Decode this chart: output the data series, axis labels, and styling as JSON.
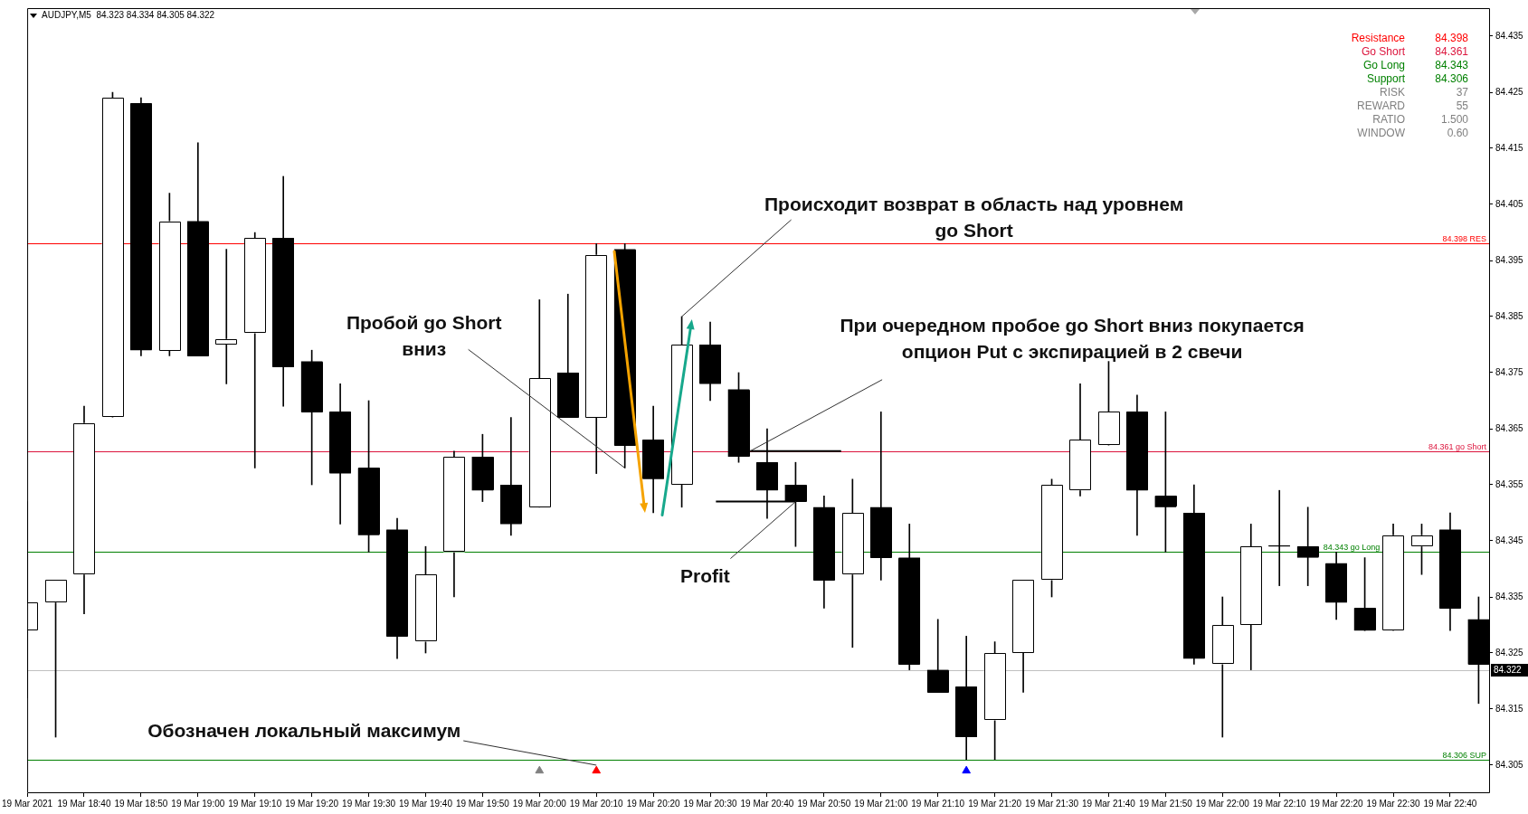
{
  "chart_data": {
    "type": "candlestick",
    "title": "AUDJPY,M5  84.323 84.334 84.305 84.322",
    "x": [
      "2021-03-19T18:30",
      "2021-03-19T18:35",
      "2021-03-19T18:40",
      "2021-03-19T18:45",
      "2021-03-19T18:50",
      "2021-03-19T18:55",
      "2021-03-19T19:00",
      "2021-03-19T19:05",
      "2021-03-19T19:10",
      "2021-03-19T19:15",
      "2021-03-19T19:20",
      "2021-03-19T19:25",
      "2021-03-19T19:30",
      "2021-03-19T19:35",
      "2021-03-19T19:40",
      "2021-03-19T19:45",
      "2021-03-19T19:50",
      "2021-03-19T19:55",
      "2021-03-19T20:00",
      "2021-03-19T20:05",
      "2021-03-19T20:10",
      "2021-03-19T20:15",
      "2021-03-19T20:20",
      "2021-03-19T20:25",
      "2021-03-19T20:30",
      "2021-03-19T20:35",
      "2021-03-19T20:40",
      "2021-03-19T20:45",
      "2021-03-19T20:50",
      "2021-03-19T20:55",
      "2021-03-19T21:00",
      "2021-03-19T21:05",
      "2021-03-19T21:10",
      "2021-03-19T21:15",
      "2021-03-19T21:20",
      "2021-03-19T21:25",
      "2021-03-19T21:30",
      "2021-03-19T21:35",
      "2021-03-19T21:40",
      "2021-03-19T21:45",
      "2021-03-19T21:50",
      "2021-03-19T21:55",
      "2021-03-19T22:00",
      "2021-03-19T22:05",
      "2021-03-19T22:10",
      "2021-03-19T22:15",
      "2021-03-19T22:20",
      "2021-03-19T22:25",
      "2021-03-19T22:30",
      "2021-03-19T22:35",
      "2021-03-19T22:40",
      "2021-03-19T22:45"
    ],
    "ohlc": [
      [
        84.329,
        84.352,
        84.317,
        84.334
      ],
      [
        84.334,
        84.338,
        84.31,
        84.338
      ],
      [
        84.339,
        84.369,
        84.332,
        84.366
      ],
      [
        84.367,
        84.425,
        84.367,
        84.424
      ],
      [
        84.423,
        84.424,
        84.378,
        84.379
      ],
      [
        84.379,
        84.407,
        84.378,
        84.402
      ],
      [
        84.402,
        84.416,
        84.378,
        84.378
      ],
      [
        84.38,
        84.397,
        84.373,
        84.381
      ],
      [
        84.382,
        84.4,
        84.358,
        84.399
      ],
      [
        84.399,
        84.41,
        84.369,
        84.376
      ],
      [
        84.377,
        84.379,
        84.355,
        84.368
      ],
      [
        84.368,
        84.373,
        84.348,
        84.357
      ],
      [
        84.358,
        84.37,
        84.343,
        84.346
      ],
      [
        84.347,
        84.349,
        84.324,
        84.328
      ],
      [
        84.327,
        84.344,
        84.325,
        84.339
      ],
      [
        84.343,
        84.361,
        84.335,
        84.36
      ],
      [
        84.36,
        84.364,
        84.352,
        84.354
      ],
      [
        84.355,
        84.367,
        84.346,
        84.348
      ],
      [
        84.351,
        84.388,
        84.351,
        84.374
      ],
      [
        84.375,
        84.389,
        84.367,
        84.367
      ],
      [
        84.367,
        84.398,
        84.357,
        84.396
      ],
      [
        84.397,
        84.398,
        84.358,
        84.362
      ],
      [
        84.363,
        84.369,
        84.35,
        84.356
      ],
      [
        84.355,
        84.385,
        84.351,
        84.38
      ],
      [
        84.38,
        84.384,
        84.37,
        84.373
      ],
      [
        84.372,
        84.375,
        84.359,
        84.36
      ],
      [
        84.359,
        84.365,
        84.349,
        84.354
      ],
      [
        84.355,
        84.359,
        84.344,
        84.352
      ],
      [
        84.351,
        84.353,
        84.333,
        84.338
      ],
      [
        84.339,
        84.356,
        84.326,
        84.35
      ],
      [
        84.351,
        84.368,
        84.338,
        84.342
      ],
      [
        84.342,
        84.348,
        84.322,
        84.323
      ],
      [
        84.322,
        84.331,
        84.318,
        84.318
      ],
      [
        84.319,
        84.328,
        84.306,
        84.31
      ],
      [
        84.313,
        84.327,
        84.306,
        84.325
      ],
      [
        84.325,
        84.338,
        84.318,
        84.338
      ],
      [
        84.338,
        84.356,
        84.335,
        84.355
      ],
      [
        84.354,
        84.373,
        84.353,
        84.363
      ],
      [
        84.362,
        84.377,
        84.362,
        84.368
      ],
      [
        84.368,
        84.371,
        84.346,
        84.354
      ],
      [
        84.353,
        84.368,
        84.343,
        84.351
      ],
      [
        84.35,
        84.355,
        84.323,
        84.324
      ],
      [
        84.323,
        84.335,
        84.31,
        84.33
      ],
      [
        84.33,
        84.348,
        84.322,
        84.344
      ],
      [
        84.344,
        84.354,
        84.337,
        84.344
      ],
      [
        84.344,
        84.351,
        84.337,
        84.342
      ],
      [
        84.341,
        84.343,
        84.331,
        84.334
      ],
      [
        84.333,
        84.342,
        84.329,
        84.329
      ],
      [
        84.329,
        84.348,
        84.329,
        84.346
      ],
      [
        84.344,
        84.348,
        84.339,
        84.346
      ],
      [
        84.347,
        84.35,
        84.329,
        84.333
      ],
      [
        84.331,
        84.335,
        84.316,
        84.323
      ]
    ],
    "color": "#000000",
    "colors": [
      "#ffffff",
      "#ffffff",
      "#ffffff",
      "#ffffff",
      "#000000",
      "#ffffff",
      "#000000",
      "#ffffff",
      "#ffffff",
      "#000000",
      "#000000",
      "#000000",
      "#000000",
      "#000000",
      "#ffffff",
      "#ffffff",
      "#000000",
      "#000000",
      "#ffffff",
      "#000000",
      "#ffffff",
      "#000000",
      "#000000",
      "#ffffff",
      "#000000",
      "#000000",
      "#000000",
      "#000000",
      "#000000",
      "#ffffff",
      "#000000",
      "#000000",
      "#000000",
      "#000000",
      "#ffffff",
      "#ffffff",
      "#ffffff",
      "#ffffff",
      "#ffffff",
      "#000000",
      "#000000",
      "#000000",
      "#ffffff",
      "#ffffff",
      "#000000",
      "#000000",
      "#000000",
      "#000000",
      "#ffffff",
      "#ffffff",
      "#000000",
      "#000000"
    ],
    "series": [
      {
        "type": "line",
        "x": [
          "2021-03-19T20:37",
          "2021-03-19T20:53"
        ],
        "values": [
          84.361,
          84.361
        ],
        "color": "#000000"
      },
      {
        "type": "line",
        "x": [
          "2021-03-19T20:31",
          "2021-03-19T20:45"
        ],
        "values": [
          84.352,
          84.352
        ],
        "color": "#000000"
      },
      {
        "type": "scatter",
        "x": [
          "2021-03-19T20:00",
          "2021-03-19T20:10",
          "2021-03-19T21:15"
        ],
        "values": [
          84.304,
          84.304,
          84.304
        ],
        "colors": [
          "#808080",
          "#ff0000",
          "#0000ff"
        ],
        "marker": "triangle"
      }
    ],
    "xlim": [
      "2021-03-19T18:30",
      "2021-03-19T22:47"
    ],
    "xticks": [
      {
        "value": "2021-03-19T18:30",
        "label": "19 Mar 2021"
      },
      {
        "value": "2021-03-19T18:40",
        "label": "19 Mar 18:40"
      },
      {
        "value": "2021-03-19T18:50",
        "label": "19 Mar 18:50"
      },
      {
        "value": "2021-03-19T19:00",
        "label": "19 Mar 19:00"
      },
      {
        "value": "2021-03-19T19:10",
        "label": "19 Mar 19:10"
      },
      {
        "value": "2021-03-19T19:20",
        "label": "19 Mar 19:20"
      },
      {
        "value": "2021-03-19T19:30",
        "label": "19 Mar 19:30"
      },
      {
        "value": "2021-03-19T19:40",
        "label": "19 Mar 19:40"
      },
      {
        "value": "2021-03-19T19:50",
        "label": "19 Mar 19:50"
      },
      {
        "value": "2021-03-19T20:00",
        "label": "19 Mar 20:00"
      },
      {
        "value": "2021-03-19T20:10",
        "label": "19 Mar 20:10"
      },
      {
        "value": "2021-03-19T20:20",
        "label": "19 Mar 20:20"
      },
      {
        "value": "2021-03-19T20:30",
        "label": "19 Mar 20:30"
      },
      {
        "value": "2021-03-19T20:40",
        "label": "19 Mar 20:40"
      },
      {
        "value": "2021-03-19T20:50",
        "label": "19 Mar 20:50"
      },
      {
        "value": "2021-03-19T21:00",
        "label": "19 Mar 21:00"
      },
      {
        "value": "2021-03-19T21:10",
        "label": "19 Mar 21:10"
      },
      {
        "value": "2021-03-19T21:20",
        "label": "19 Mar 21:20"
      },
      {
        "value": "2021-03-19T21:30",
        "label": "19 Mar 21:30"
      },
      {
        "value": "2021-03-19T21:40",
        "label": "19 Mar 21:40"
      },
      {
        "value": "2021-03-19T21:50",
        "label": "19 Mar 21:50"
      },
      {
        "value": "2021-03-19T22:00",
        "label": "19 Mar 22:00"
      },
      {
        "value": "2021-03-19T22:10",
        "label": "19 Mar 22:10"
      },
      {
        "value": "2021-03-19T22:20",
        "label": "19 Mar 22:20"
      },
      {
        "value": "2021-03-19T22:30",
        "label": "19 Mar 22:30"
      },
      {
        "value": "2021-03-19T22:40",
        "label": "19 Mar 22:40"
      }
    ],
    "ylim": [
      84.3,
      84.44
    ],
    "yticks": [
      84.305,
      84.315,
      84.325,
      84.335,
      84.345,
      84.355,
      84.365,
      84.375,
      84.385,
      84.395,
      84.405,
      84.415,
      84.425,
      84.435
    ],
    "ref_lines": [
      {
        "axis": "y",
        "value": 84.398,
        "label": "84.398 RES",
        "color": "#ff0000"
      },
      {
        "axis": "y",
        "value": 84.361,
        "label": "84.361 go Short",
        "color": "#dc143c"
      },
      {
        "axis": "y",
        "value": 84.343,
        "label": "84.343 go Long",
        "color": "#008000"
      },
      {
        "axis": "y",
        "value": 84.322,
        "label": "84.322",
        "color": "#c0c0c0"
      },
      {
        "axis": "y",
        "value": 84.306,
        "label": "84.306 SUP",
        "color": "#008000"
      }
    ],
    "annotations": [
      "Resistance 84.398",
      "Go Short 84.361",
      "Go Long 84.343",
      "Support 84.306",
      "RISK 37",
      "REWARD 55",
      "RATIO 1.500",
      "WINDOW 0.60",
      {
        "text": "Происходит возврат в область над уровнем\ngo Short",
        "x": "2021-03-19T20:25",
        "y": 84.385
      },
      {
        "text": "Пробой go Short\nвниз",
        "x": "2021-03-19T20:15",
        "y": 84.358
      },
      {
        "text": "При очередном пробое go Short вниз покупается\nопцион Put с экспирацией в 2 свечи",
        "x": "2021-03-19T20:37",
        "y": 84.361
      },
      {
        "text": "Profit",
        "x": "2021-03-19T20:45",
        "y": 84.352
      },
      {
        "text": "Обозначен локальный максимум",
        "x": "2021-03-19T20:10",
        "y": 84.305
      }
    ]
  }
}
